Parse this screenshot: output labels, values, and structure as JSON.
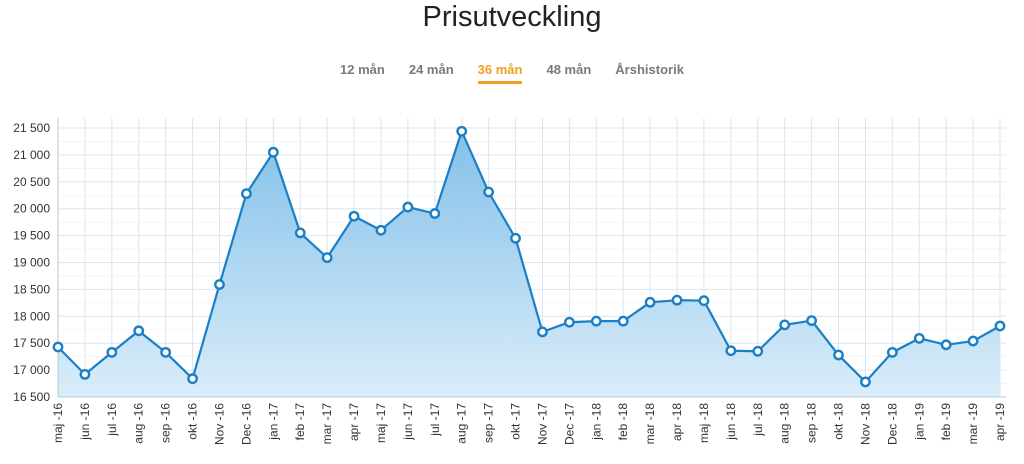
{
  "title": "Prisutveckling",
  "tabs": [
    {
      "label": "12 mån",
      "active": false
    },
    {
      "label": "24 mån",
      "active": false
    },
    {
      "label": "36 mån",
      "active": true
    },
    {
      "label": "48 mån",
      "active": false
    },
    {
      "label": "Årshistorik",
      "active": false
    }
  ],
  "colors": {
    "line": "#1a7fc6",
    "fill_top": "#7dbde8",
    "fill_bottom": "#d8ecf9",
    "grid": "#d9e6ef",
    "active_tab": "#f0a01e"
  },
  "chart_data": {
    "type": "area",
    "title": "",
    "xlabel": "",
    "ylabel": "",
    "ylim": [
      16500,
      21600
    ],
    "yticks": [
      16500,
      17000,
      17500,
      18000,
      18500,
      19000,
      19500,
      20000,
      20500,
      21000,
      21500
    ],
    "ytick_labels": [
      "16 500",
      "17 000",
      "17 500",
      "18 000",
      "18 500",
      "19 000",
      "19 500",
      "20 000",
      "20 500",
      "21 000",
      "21 500"
    ],
    "grid": true,
    "legend": "none",
    "categories": [
      "maj -16",
      "jun -16",
      "jul -16",
      "aug -16",
      "sep -16",
      "okt -16",
      "Nov -16",
      "Dec -16",
      "jan -17",
      "feb -17",
      "mar -17",
      "apr -17",
      "maj -17",
      "jun -17",
      "jul -17",
      "aug -17",
      "sep -17",
      "okt -17",
      "Nov -17",
      "Dec -17",
      "jan -18",
      "feb -18",
      "mar -18",
      "apr -18",
      "maj -18",
      "jun -18",
      "jul -18",
      "aug -18",
      "sep -18",
      "okt -18",
      "Nov -18",
      "Dec -18",
      "jan -19",
      "feb -19",
      "mar -19",
      "apr -19"
    ],
    "values": [
      17430,
      16920,
      17330,
      17730,
      17330,
      16840,
      18590,
      20280,
      21050,
      19550,
      19090,
      19860,
      19600,
      20030,
      19910,
      21440,
      20310,
      19450,
      17710,
      17890,
      17910,
      17910,
      18260,
      18300,
      18290,
      17360,
      17350,
      17840,
      17920,
      17280,
      16780,
      17330,
      17590,
      17470,
      17540,
      17820
    ]
  }
}
